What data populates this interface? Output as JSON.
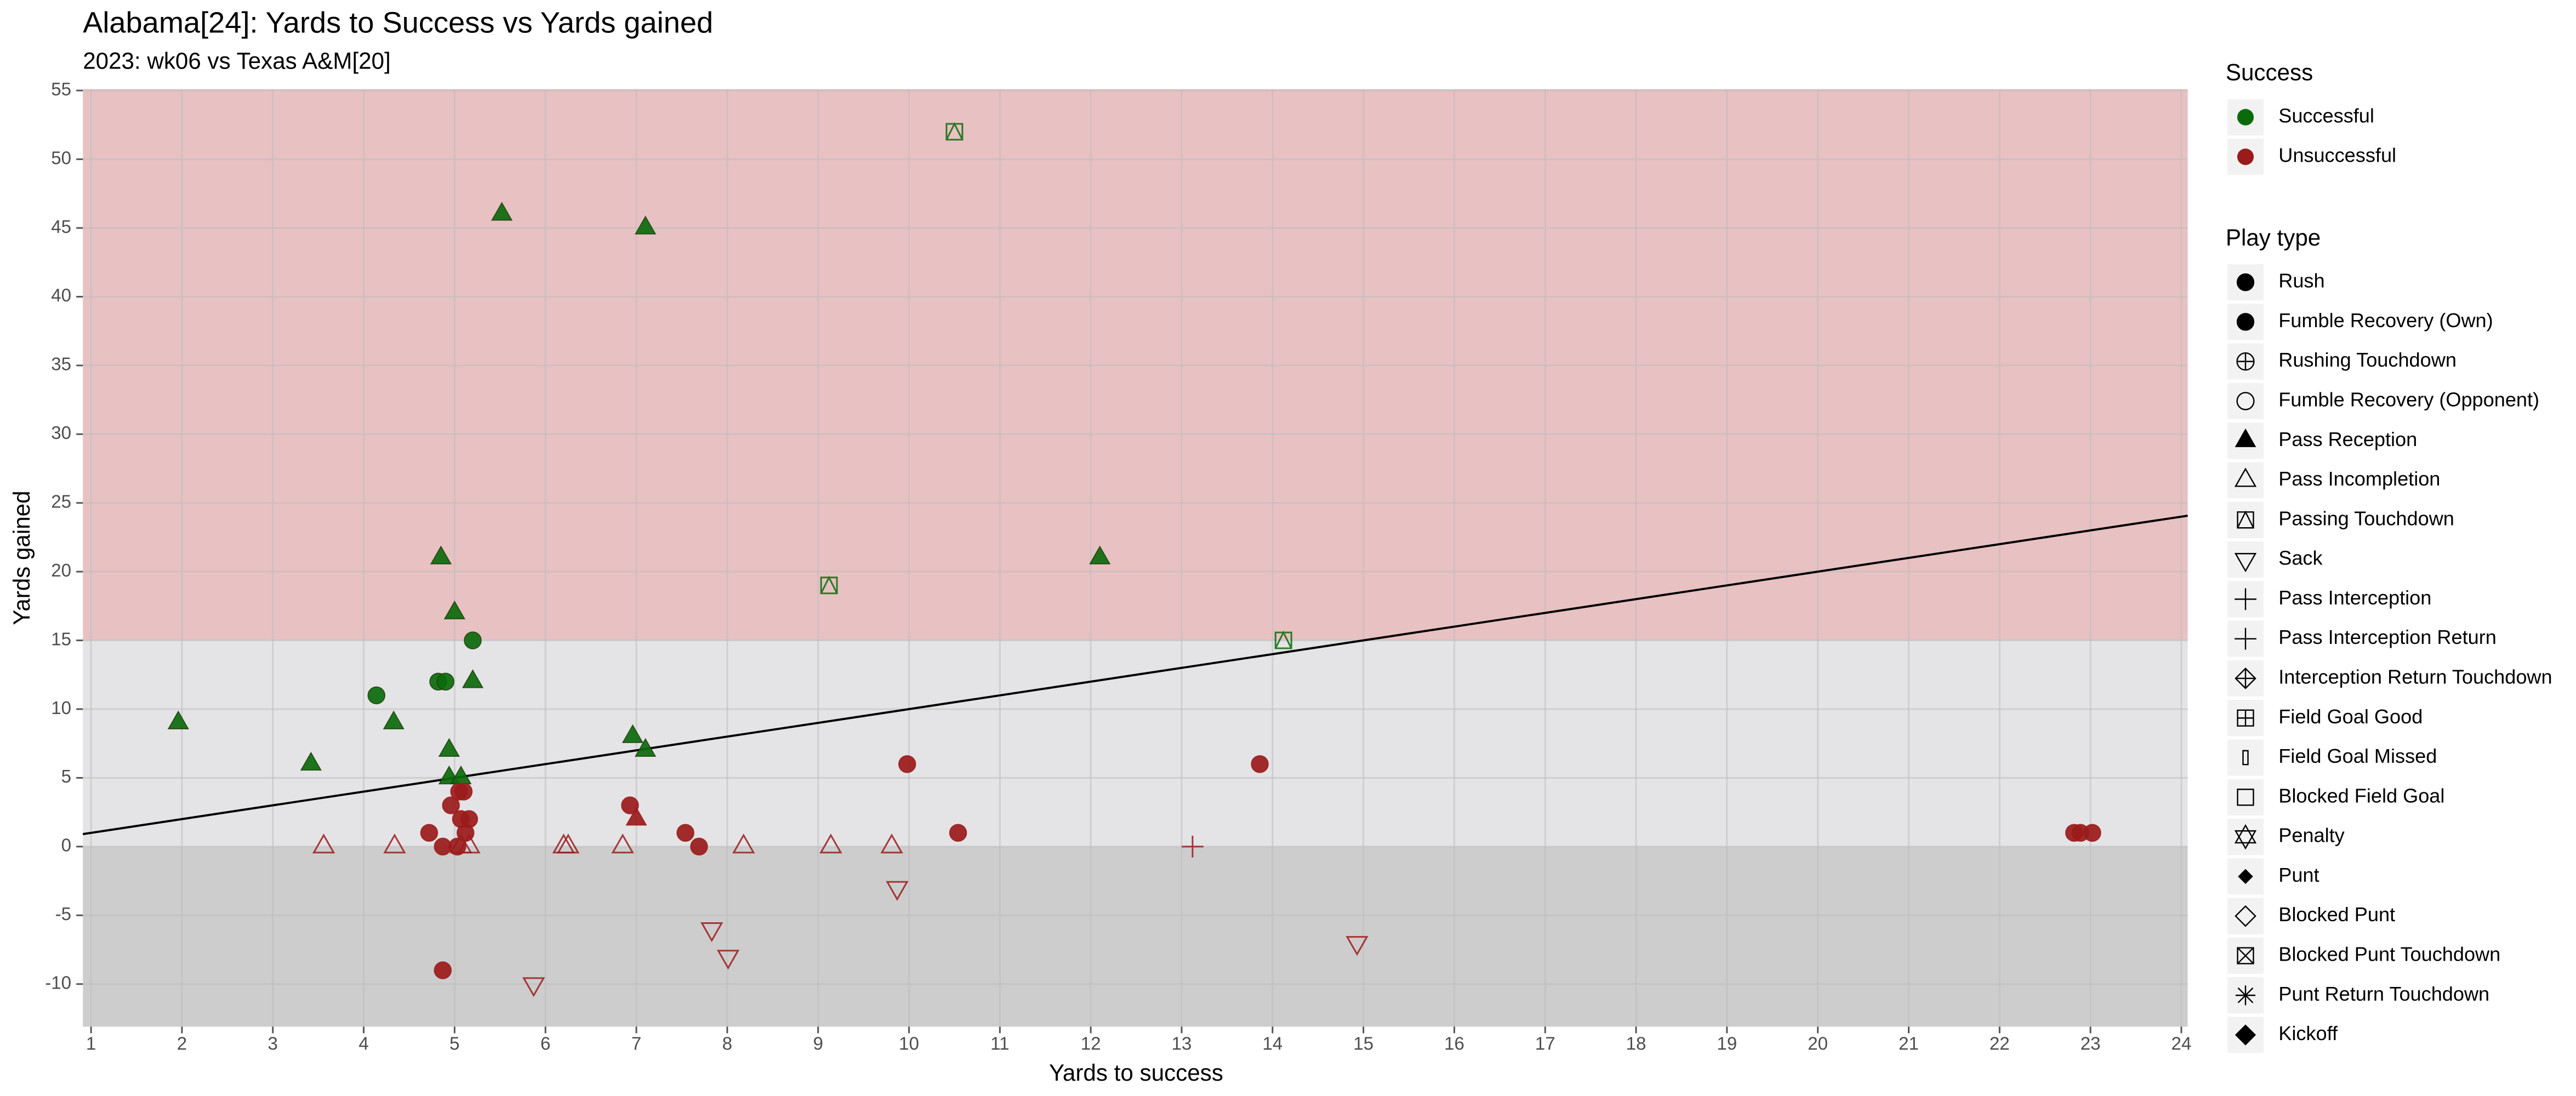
{
  "chart_data": {
    "type": "scatter",
    "title": "Alabama[24]: Yards to Success vs Yards gained",
    "subtitle": "2023: wk06 vs Texas A&M[20]",
    "x_label": "Yards to success",
    "y_label": "Yards gained",
    "xlim": [
      0.91,
      24.07
    ],
    "ylim": [
      -13.1,
      55.1
    ],
    "xticks": [
      1,
      2,
      3,
      4,
      5,
      6,
      7,
      8,
      9,
      10,
      11,
      12,
      13,
      14,
      15,
      16,
      17,
      18,
      19,
      20,
      21,
      22,
      23,
      24
    ],
    "yticks": [
      -10,
      -5,
      0,
      5,
      10,
      15,
      20,
      25,
      30,
      35,
      40,
      45,
      50,
      55
    ],
    "grid": true,
    "bands": [
      {
        "from": 15,
        "color": "#e8c1c3"
      },
      {
        "from": 0,
        "to": 15,
        "color": "#e4e4e6"
      },
      {
        "to": 0,
        "color": "#cdcdcd"
      }
    ],
    "reference_line": {
      "slope": 1,
      "intercept": 0,
      "color": "#000000"
    },
    "legends": [
      {
        "title": "Success",
        "entries": [
          {
            "name": "Successful",
            "color": "#0b6b0b"
          },
          {
            "name": "Unsuccessful",
            "color": "#9b1b1b"
          }
        ]
      },
      {
        "title": "Play type",
        "entries": [
          {
            "name": "Rush",
            "shape": "circle",
            "filled": true
          },
          {
            "name": "Fumble Recovery (Own)",
            "shape": "circle",
            "filled": true
          },
          {
            "name": "Rushing Touchdown",
            "shape": "circle-plus",
            "filled": false
          },
          {
            "name": "Fumble Recovery (Opponent)",
            "shape": "circle",
            "filled": false
          },
          {
            "name": "Pass Reception",
            "shape": "triangle",
            "filled": true
          },
          {
            "name": "Pass Incompletion",
            "shape": "triangle",
            "filled": false
          },
          {
            "name": "Passing Touchdown",
            "shape": "square-triangle",
            "filled": false
          },
          {
            "name": "Sack",
            "shape": "triangle-down",
            "filled": false
          },
          {
            "name": "Pass Interception",
            "shape": "plus",
            "filled": false
          },
          {
            "name": "Pass Interception Return",
            "shape": "plus",
            "filled": false
          },
          {
            "name": "Interception Return Touchdown",
            "shape": "diamond-plus",
            "filled": false
          },
          {
            "name": "Field Goal Good",
            "shape": "square-plus",
            "filled": false
          },
          {
            "name": "Field Goal Missed",
            "shape": "bar",
            "filled": false
          },
          {
            "name": "Blocked Field Goal",
            "shape": "square",
            "filled": false
          },
          {
            "name": "Penalty",
            "shape": "star",
            "filled": false
          },
          {
            "name": "Punt",
            "shape": "diamond-small",
            "filled": true
          },
          {
            "name": "Blocked Punt",
            "shape": "diamond",
            "filled": false
          },
          {
            "name": "Blocked Punt Touchdown",
            "shape": "square-x",
            "filled": false
          },
          {
            "name": "Punt Return Touchdown",
            "shape": "asterisk",
            "filled": false
          },
          {
            "name": "Kickoff",
            "shape": "diamond",
            "filled": true
          }
        ]
      }
    ],
    "series": [
      {
        "name": "Pass Reception",
        "success": "Successful",
        "x": [
          1.96,
          3.42,
          4.33,
          4.85,
          5.0,
          4.94,
          4.94,
          5.07,
          5.2,
          5.52,
          7.1,
          6.96,
          7.1,
          12.1
        ],
        "y": [
          9,
          6,
          9,
          21,
          17,
          7,
          5,
          5,
          12,
          46,
          45,
          8,
          7,
          21
        ]
      },
      {
        "name": "Rush",
        "success": "Successful",
        "x": [
          4.14,
          4.82,
          4.9,
          5.2
        ],
        "y": [
          11,
          12,
          12,
          15
        ]
      },
      {
        "name": "Passing Touchdown",
        "success": "Successful",
        "x": [
          10.5,
          9.12,
          14.12
        ],
        "y": [
          52,
          19,
          15
        ]
      },
      {
        "name": "Rush",
        "success": "Unsuccessful",
        "x": [
          4.72,
          4.87,
          4.96,
          5.05,
          5.1,
          5.07,
          5.16,
          5.12,
          5.03,
          4.87,
          6.93,
          7.54,
          7.69,
          9.98,
          10.54,
          13.86,
          22.82,
          22.89,
          23.02
        ],
        "y": [
          1,
          0,
          3,
          4,
          4,
          2,
          2,
          1,
          0,
          -9,
          3,
          1,
          0,
          6,
          1,
          6,
          1,
          1,
          1
        ]
      },
      {
        "name": "Pass Reception",
        "success": "Unsuccessful",
        "x": [
          7.0
        ],
        "y": [
          2
        ]
      },
      {
        "name": "Pass Incompletion",
        "success": "Unsuccessful",
        "x": [
          3.56,
          4.34,
          5.07,
          5.16,
          6.2,
          6.25,
          6.85,
          8.18,
          9.14,
          9.81
        ],
        "y": [
          0,
          0,
          0,
          0,
          0,
          0,
          0,
          0,
          0,
          0
        ]
      },
      {
        "name": "Sack",
        "success": "Unsuccessful",
        "x": [
          5.87,
          7.83,
          8.01,
          9.87,
          14.93
        ],
        "y": [
          -10,
          -6,
          -8,
          -3,
          -7
        ]
      },
      {
        "name": "Pass Interception",
        "success": "Unsuccessful",
        "x": [
          13.12
        ],
        "y": [
          0
        ]
      }
    ]
  }
}
